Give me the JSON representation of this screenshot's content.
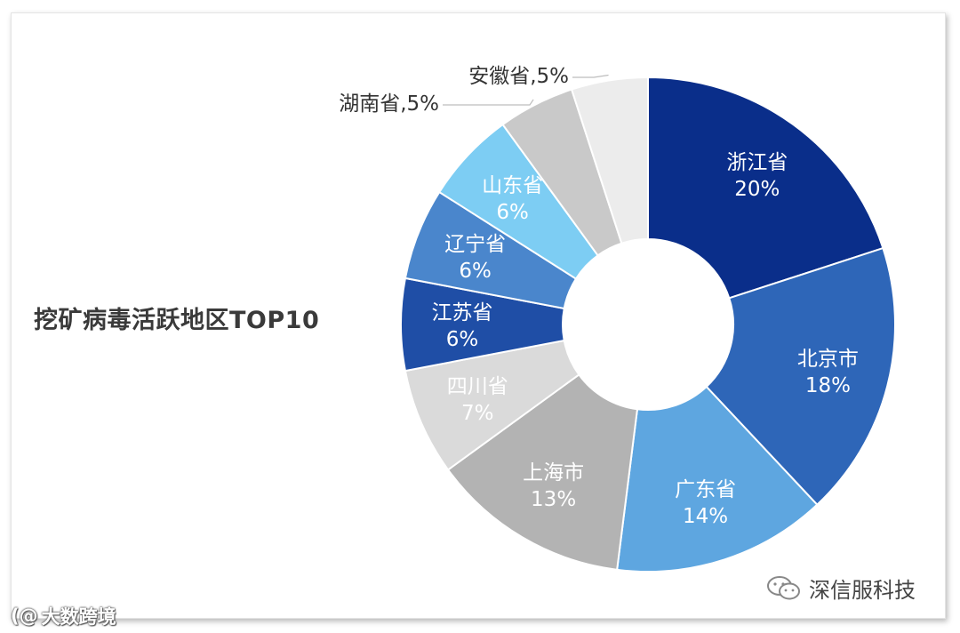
{
  "chart_data": {
    "type": "pie",
    "title": "挖矿病毒活跃地区TOP10",
    "slices": [
      {
        "label": "浙江省",
        "value": 20,
        "pct_text": "20%",
        "color": "#0a2e8a",
        "text_color": "#ffffff"
      },
      {
        "label": "北京市",
        "value": 18,
        "pct_text": "18%",
        "color": "#2e66b8",
        "text_color": "#ffffff"
      },
      {
        "label": "广东省",
        "value": 14,
        "pct_text": "14%",
        "color": "#5ea6e0",
        "text_color": "#ffffff"
      },
      {
        "label": "上海市",
        "value": 13,
        "pct_text": "13%",
        "color": "#b3b3b3",
        "text_color": "#ffffff"
      },
      {
        "label": "四川省",
        "value": 7,
        "pct_text": "7%",
        "color": "#dadada",
        "text_color": "#ffffff"
      },
      {
        "label": "江苏省",
        "value": 6,
        "pct_text": "6%",
        "color": "#1f4ea6",
        "text_color": "#ffffff"
      },
      {
        "label": "辽宁省",
        "value": 6,
        "pct_text": "6%",
        "color": "#4a86cc",
        "text_color": "#ffffff"
      },
      {
        "label": "山东省",
        "value": 6,
        "pct_text": "6%",
        "color": "#7dcdf3",
        "text_color": "#ffffff"
      },
      {
        "label": "湖南省",
        "value": 5,
        "pct_text": "湖南省,5%",
        "color": "#c9c9c9",
        "text_color": "#333333",
        "outside": true
      },
      {
        "label": "安徽省",
        "value": 5,
        "pct_text": "安徽省,5%",
        "color": "#ececec",
        "text_color": "#333333",
        "outside": true
      }
    ]
  },
  "watermarks": {
    "left_logo": "(@",
    "left_text": "大数跨境",
    "right_icon": "wechat-icon",
    "right_text": "深信服科技"
  }
}
